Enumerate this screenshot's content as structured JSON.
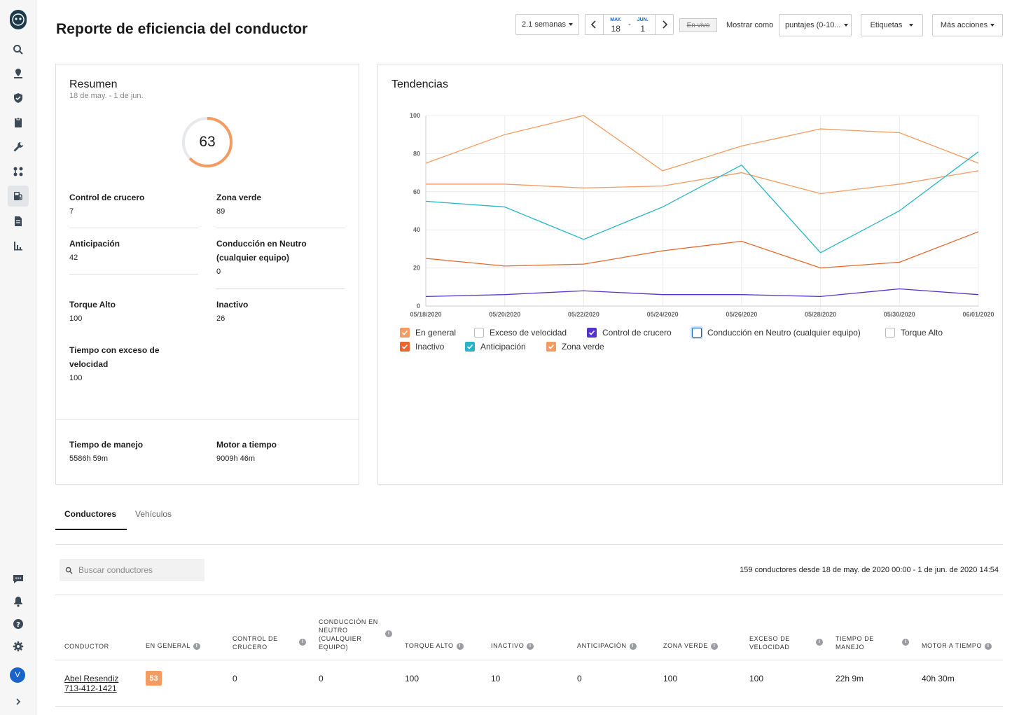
{
  "page": {
    "title": "Reporte de eficiencia del conductor"
  },
  "header": {
    "range_select": "2.1 semanas",
    "date_start_month": "MAY.",
    "date_start_day": "18",
    "date_sep": "-",
    "date_end_month": "JUN.",
    "date_end_day": "1",
    "live_label": "En vivo",
    "show_as_label": "Mostrar como",
    "show_as_value": "puntajes (0-10...",
    "tags_label": "Etiquetas",
    "more_actions_label": "Más acciones"
  },
  "summary": {
    "title": "Resumen",
    "date_range": "18 de may. - 1 de jun.",
    "score": "63",
    "score_fraction": 0.63,
    "stats": [
      {
        "label": "Control de crucero",
        "value": "7"
      },
      {
        "label": "Zona verde",
        "value": "89"
      },
      {
        "label": "Anticipación",
        "value": "42"
      },
      {
        "label": "Conducción en Neutro (cualquier equipo)",
        "value": "0"
      },
      {
        "label": "Torque Alto",
        "value": "100"
      },
      {
        "label": "Inactivo",
        "value": "26"
      },
      {
        "label": "Tiempo con exceso de velocidad",
        "value": "100"
      }
    ],
    "footer": [
      {
        "label": "Tiempo de manejo",
        "value": "5586h 59m"
      },
      {
        "label": "Motor a tiempo",
        "value": "9009h 46m"
      }
    ]
  },
  "trends": {
    "title": "Tendencias",
    "legend": [
      {
        "label": "En general",
        "checked": true,
        "color": "#f39b60"
      },
      {
        "label": "Exceso de velocidad",
        "checked": false,
        "color": "#b9bbc0"
      },
      {
        "label": "Control de crucero",
        "checked": true,
        "color": "#5533cc"
      },
      {
        "label": "Conducción en Neutro (cualquier equipo)",
        "checked": false,
        "color": "#1a63c9"
      },
      {
        "label": "Torque Alto",
        "checked": false,
        "color": "#b9bbc0"
      },
      {
        "label": "Inactivo",
        "checked": true,
        "color": "#e8662e"
      },
      {
        "label": "Anticipación",
        "checked": true,
        "color": "#26b5c4"
      },
      {
        "label": "Zona verde",
        "checked": true,
        "color": "#f39b60"
      }
    ]
  },
  "chart_data": {
    "type": "line",
    "title": "Tendencias",
    "x": [
      "05/18/2020",
      "05/20/2020",
      "05/22/2020",
      "05/24/2020",
      "05/26/2020",
      "05/28/2020",
      "05/30/2020",
      "06/01/2020"
    ],
    "ylim": [
      0,
      100
    ],
    "yticks": [
      0,
      20,
      40,
      60,
      80,
      100
    ],
    "grid": true,
    "series": [
      {
        "name": "Zona verde",
        "color": "#f39b60",
        "values": [
          75,
          90,
          100,
          71,
          84,
          93,
          91,
          75
        ]
      },
      {
        "name": "En general",
        "color": "#f39b60",
        "values": [
          64,
          64,
          62,
          63,
          70,
          59,
          64,
          71
        ]
      },
      {
        "name": "Anticipación",
        "color": "#26b5c4",
        "values": [
          55,
          52,
          35,
          52,
          74,
          28,
          50,
          81
        ]
      },
      {
        "name": "Inactivo",
        "color": "#e8662e",
        "values": [
          25,
          21,
          22,
          29,
          34,
          20,
          23,
          39
        ]
      },
      {
        "name": "Control de crucero",
        "color": "#5533cc",
        "values": [
          5,
          6,
          8,
          6,
          6,
          5,
          9,
          6
        ]
      }
    ]
  },
  "tabs": [
    {
      "label": "Conductores",
      "active": true
    },
    {
      "label": "Vehículos",
      "active": false
    }
  ],
  "search": {
    "placeholder": "Buscar conductores"
  },
  "count_text": "159 conductores desde 18 de may. de 2020 00:00 - 1 de jun. de 2020 14:54",
  "table": {
    "columns": [
      "Conductor",
      "En general",
      "Control de crucero",
      "Conducción en neutro (cualquier equipo)",
      "Torque alto",
      "Inactivo",
      "Anticipación",
      "Zona verde",
      "Exceso de velocidad",
      "Tiempo de manejo",
      "Motor a tiempo"
    ],
    "rows": [
      {
        "driver_name": "Abel Resendiz",
        "driver_phone": "713-412-1421",
        "score": "53",
        "cruise": "0",
        "neutral": "0",
        "torque": "100",
        "idle": "10",
        "anticipation": "0",
        "green": "100",
        "speeding": "100",
        "drive_time": "22h 9m",
        "engine_time": "40h 30m"
      }
    ]
  },
  "colors": {
    "accent": "#f39b60",
    "avatar": "#1a63c9"
  },
  "user": {
    "initial": "V"
  }
}
